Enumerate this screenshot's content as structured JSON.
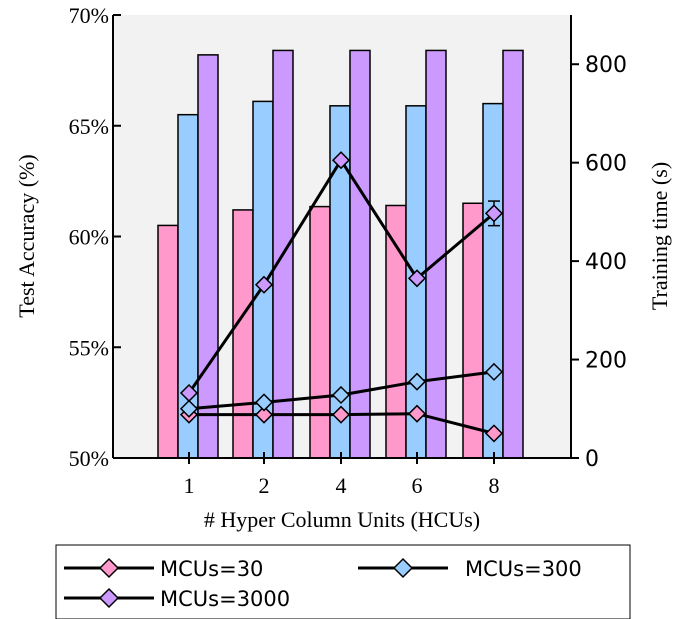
{
  "chart_data": {
    "type": "bar",
    "categories": [
      "1",
      "2",
      "4",
      "6",
      "8"
    ],
    "xlabel": "# Hyper Column Units (HCUs)",
    "ylabel_left": "Test Accuracy (%)",
    "ylabel_right": "Training time (s)",
    "ylim_left": [
      50,
      70
    ],
    "ylim_right": [
      0,
      900
    ],
    "yticks_left": [
      "50%",
      "55%",
      "60%",
      "65%",
      "70%"
    ],
    "yticks_left_values": [
      50,
      55,
      60,
      65,
      70
    ],
    "yticks_right": [
      "0",
      "200",
      "400",
      "600",
      "800"
    ],
    "yticks_right_values": [
      0,
      200,
      400,
      600,
      800
    ],
    "grid": false,
    "legend_position": "bottom",
    "bar_series": [
      {
        "name": "MCUs=30",
        "color": "#ff99cc",
        "values": [
          60.5,
          61.2,
          61.35,
          61.4,
          61.5
        ]
      },
      {
        "name": "MCUs=300",
        "color": "#99ccff",
        "values": [
          65.5,
          66.1,
          65.9,
          65.9,
          66.0
        ]
      },
      {
        "name": "MCUs=3000",
        "color": "#cc99ff",
        "values": [
          68.2,
          68.4,
          68.4,
          68.4,
          68.4
        ]
      }
    ],
    "line_series": [
      {
        "name": "MCUs=30",
        "color": "#ff99cc",
        "values": [
          88,
          88,
          88,
          90,
          50
        ]
      },
      {
        "name": "MCUs=300",
        "color": "#99ccff",
        "values": [
          100,
          113,
          128,
          155,
          175
        ]
      },
      {
        "name": "MCUs=3000",
        "color": "#cc99ff",
        "values": [
          132,
          352,
          605,
          365,
          497
        ],
        "error": [
          0,
          0,
          0,
          0,
          25
        ]
      }
    ],
    "legend": [
      {
        "label": "MCUs=30",
        "color": "#ff99cc"
      },
      {
        "label": "MCUs=300",
        "color": "#99ccff"
      },
      {
        "label": "MCUs=3000",
        "color": "#cc99ff"
      }
    ]
  }
}
